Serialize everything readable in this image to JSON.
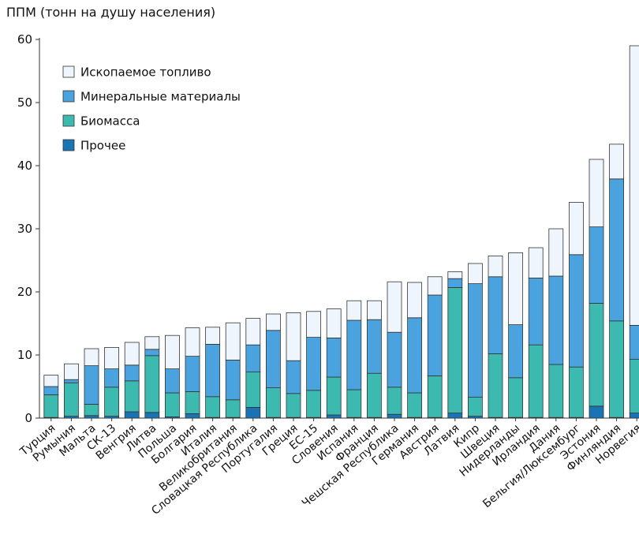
{
  "chart_data": {
    "type": "bar",
    "stacked": true,
    "ylabel": "ППМ (тонн на душу населения)",
    "ylim": [
      0,
      60
    ],
    "yticks": [
      0,
      10,
      20,
      30,
      40,
      50,
      60
    ],
    "grid": false,
    "legend_position": "top-left",
    "categories": [
      "Турция",
      "Румыния",
      "Мальта",
      "СК-13",
      "Венгрия",
      "Литва",
      "Польша",
      "Болгария",
      "Италия",
      "Великобритания",
      "Словацкая Республика",
      "Португалия",
      "Греция",
      "ЕС-15",
      "Словения",
      "Испания",
      "Франция",
      "Чешская Республика",
      "Германия",
      "Австрия",
      "Латвия",
      "Кипр",
      "Швеция",
      "Нидерланды",
      "Ирландия",
      "Дания",
      "Бельгия/Люксембург",
      "Эстония",
      "Финляндия",
      "Норвегия"
    ],
    "series": [
      {
        "name": "Прочее",
        "color": "#1a73b4",
        "values": [
          0.1,
          0.3,
          0.4,
          0.3,
          1.0,
          0.9,
          0.2,
          0.7,
          0.1,
          0.1,
          1.7,
          0.1,
          0.1,
          0.1,
          0.5,
          0.1,
          0.1,
          0.6,
          0.1,
          0.1,
          0.8,
          0.3,
          0.1,
          0.1,
          0.1,
          0.1,
          0.1,
          1.9,
          0.1,
          0.8
        ]
      },
      {
        "name": "Биомасса",
        "color": "#3dbab0",
        "values": [
          3.6,
          5.3,
          1.8,
          4.6,
          4.9,
          9.0,
          3.8,
          3.5,
          3.3,
          2.8,
          5.6,
          4.7,
          3.8,
          4.3,
          6.0,
          4.4,
          7.0,
          4.3,
          3.9,
          6.6,
          19.9,
          3.0,
          10.1,
          6.3,
          11.5,
          8.4,
          8.0,
          16.3,
          15.3,
          8.5
        ]
      },
      {
        "name": "Минеральные материалы",
        "color": "#4aa3df",
        "values": [
          1.3,
          0.5,
          6.1,
          2.9,
          2.5,
          1.0,
          3.8,
          5.6,
          8.3,
          6.3,
          4.3,
          9.1,
          5.2,
          8.4,
          6.2,
          11.0,
          8.5,
          8.7,
          11.9,
          12.8,
          1.4,
          18.0,
          12.2,
          8.4,
          10.6,
          14.0,
          17.8,
          12.1,
          22.5,
          5.4
        ]
      },
      {
        "name": "Ископаемое топливо",
        "color": "#eef5fc",
        "values": [
          1.8,
          2.5,
          2.7,
          3.4,
          3.6,
          2.0,
          5.3,
          4.5,
          2.7,
          5.9,
          4.2,
          2.6,
          7.6,
          4.1,
          4.6,
          3.1,
          3.0,
          8.0,
          5.6,
          2.9,
          1.1,
          3.2,
          3.3,
          11.4,
          4.8,
          7.5,
          8.3,
          10.7,
          5.5,
          44.3
        ]
      }
    ],
    "legend_order": [
      "Ископаемое топливо",
      "Минеральные материалы",
      "Биомасса",
      "Прочее"
    ]
  }
}
